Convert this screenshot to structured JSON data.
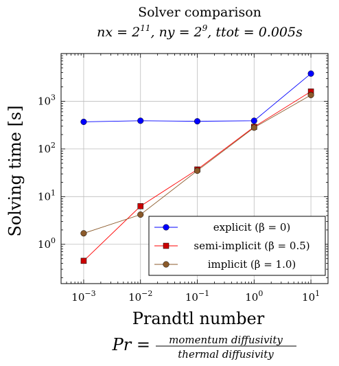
{
  "chart_data": {
    "type": "line",
    "title": "Solver comparison",
    "subtitle": "nx = 2^11, ny = 2^9, ttot = 0.005s",
    "subtitle_parts": {
      "nx_label": "nx = 2",
      "nx_exp": "11",
      "ny_label": ", ny = 2",
      "ny_exp": "9",
      "ttot": ", ttot = 0.005s"
    },
    "xlabel": "Prandtl number",
    "ylabel": "Solving time [s]",
    "xscale": "log",
    "yscale": "log",
    "xlim": [
      0.0004,
      20
    ],
    "ylim": [
      0.15,
      10000
    ],
    "grid": true,
    "legend_position": "bottom-right",
    "x_ticks": [
      {
        "base": "10",
        "exp": "−3",
        "value": 0.001
      },
      {
        "base": "10",
        "exp": "−2",
        "value": 0.01
      },
      {
        "base": "10",
        "exp": "−1",
        "value": 0.1
      },
      {
        "base": "10",
        "exp": "0",
        "value": 1
      },
      {
        "base": "10",
        "exp": "1",
        "value": 10
      }
    ],
    "y_ticks": [
      {
        "base": "10",
        "exp": "0",
        "value": 1
      },
      {
        "base": "10",
        "exp": "1",
        "value": 10
      },
      {
        "base": "10",
        "exp": "2",
        "value": 100
      },
      {
        "base": "10",
        "exp": "3",
        "value": 1000
      }
    ],
    "x": [
      0.001,
      0.01,
      0.1,
      1,
      10
    ],
    "series": [
      {
        "name": "explicit (β = 0)",
        "color": "#0000ff",
        "marker": "circle",
        "values": [
          370,
          390,
          380,
          390,
          3800
        ]
      },
      {
        "name": "semi-implicit (β = 0.5)",
        "color": "#ff0000",
        "marker": "square",
        "marker_color": "#cc0000",
        "values": [
          0.45,
          6.3,
          37,
          290,
          1600
        ]
      },
      {
        "name": "implicit (β = 1.0)",
        "color": "#8b5a2b",
        "marker": "circle",
        "values": [
          1.7,
          4.2,
          35,
          280,
          1350
        ]
      }
    ],
    "formula": {
      "lhs": "Pr =",
      "numerator": "momentum  diffusivity",
      "denominator": "thermal  diffusivity"
    }
  }
}
